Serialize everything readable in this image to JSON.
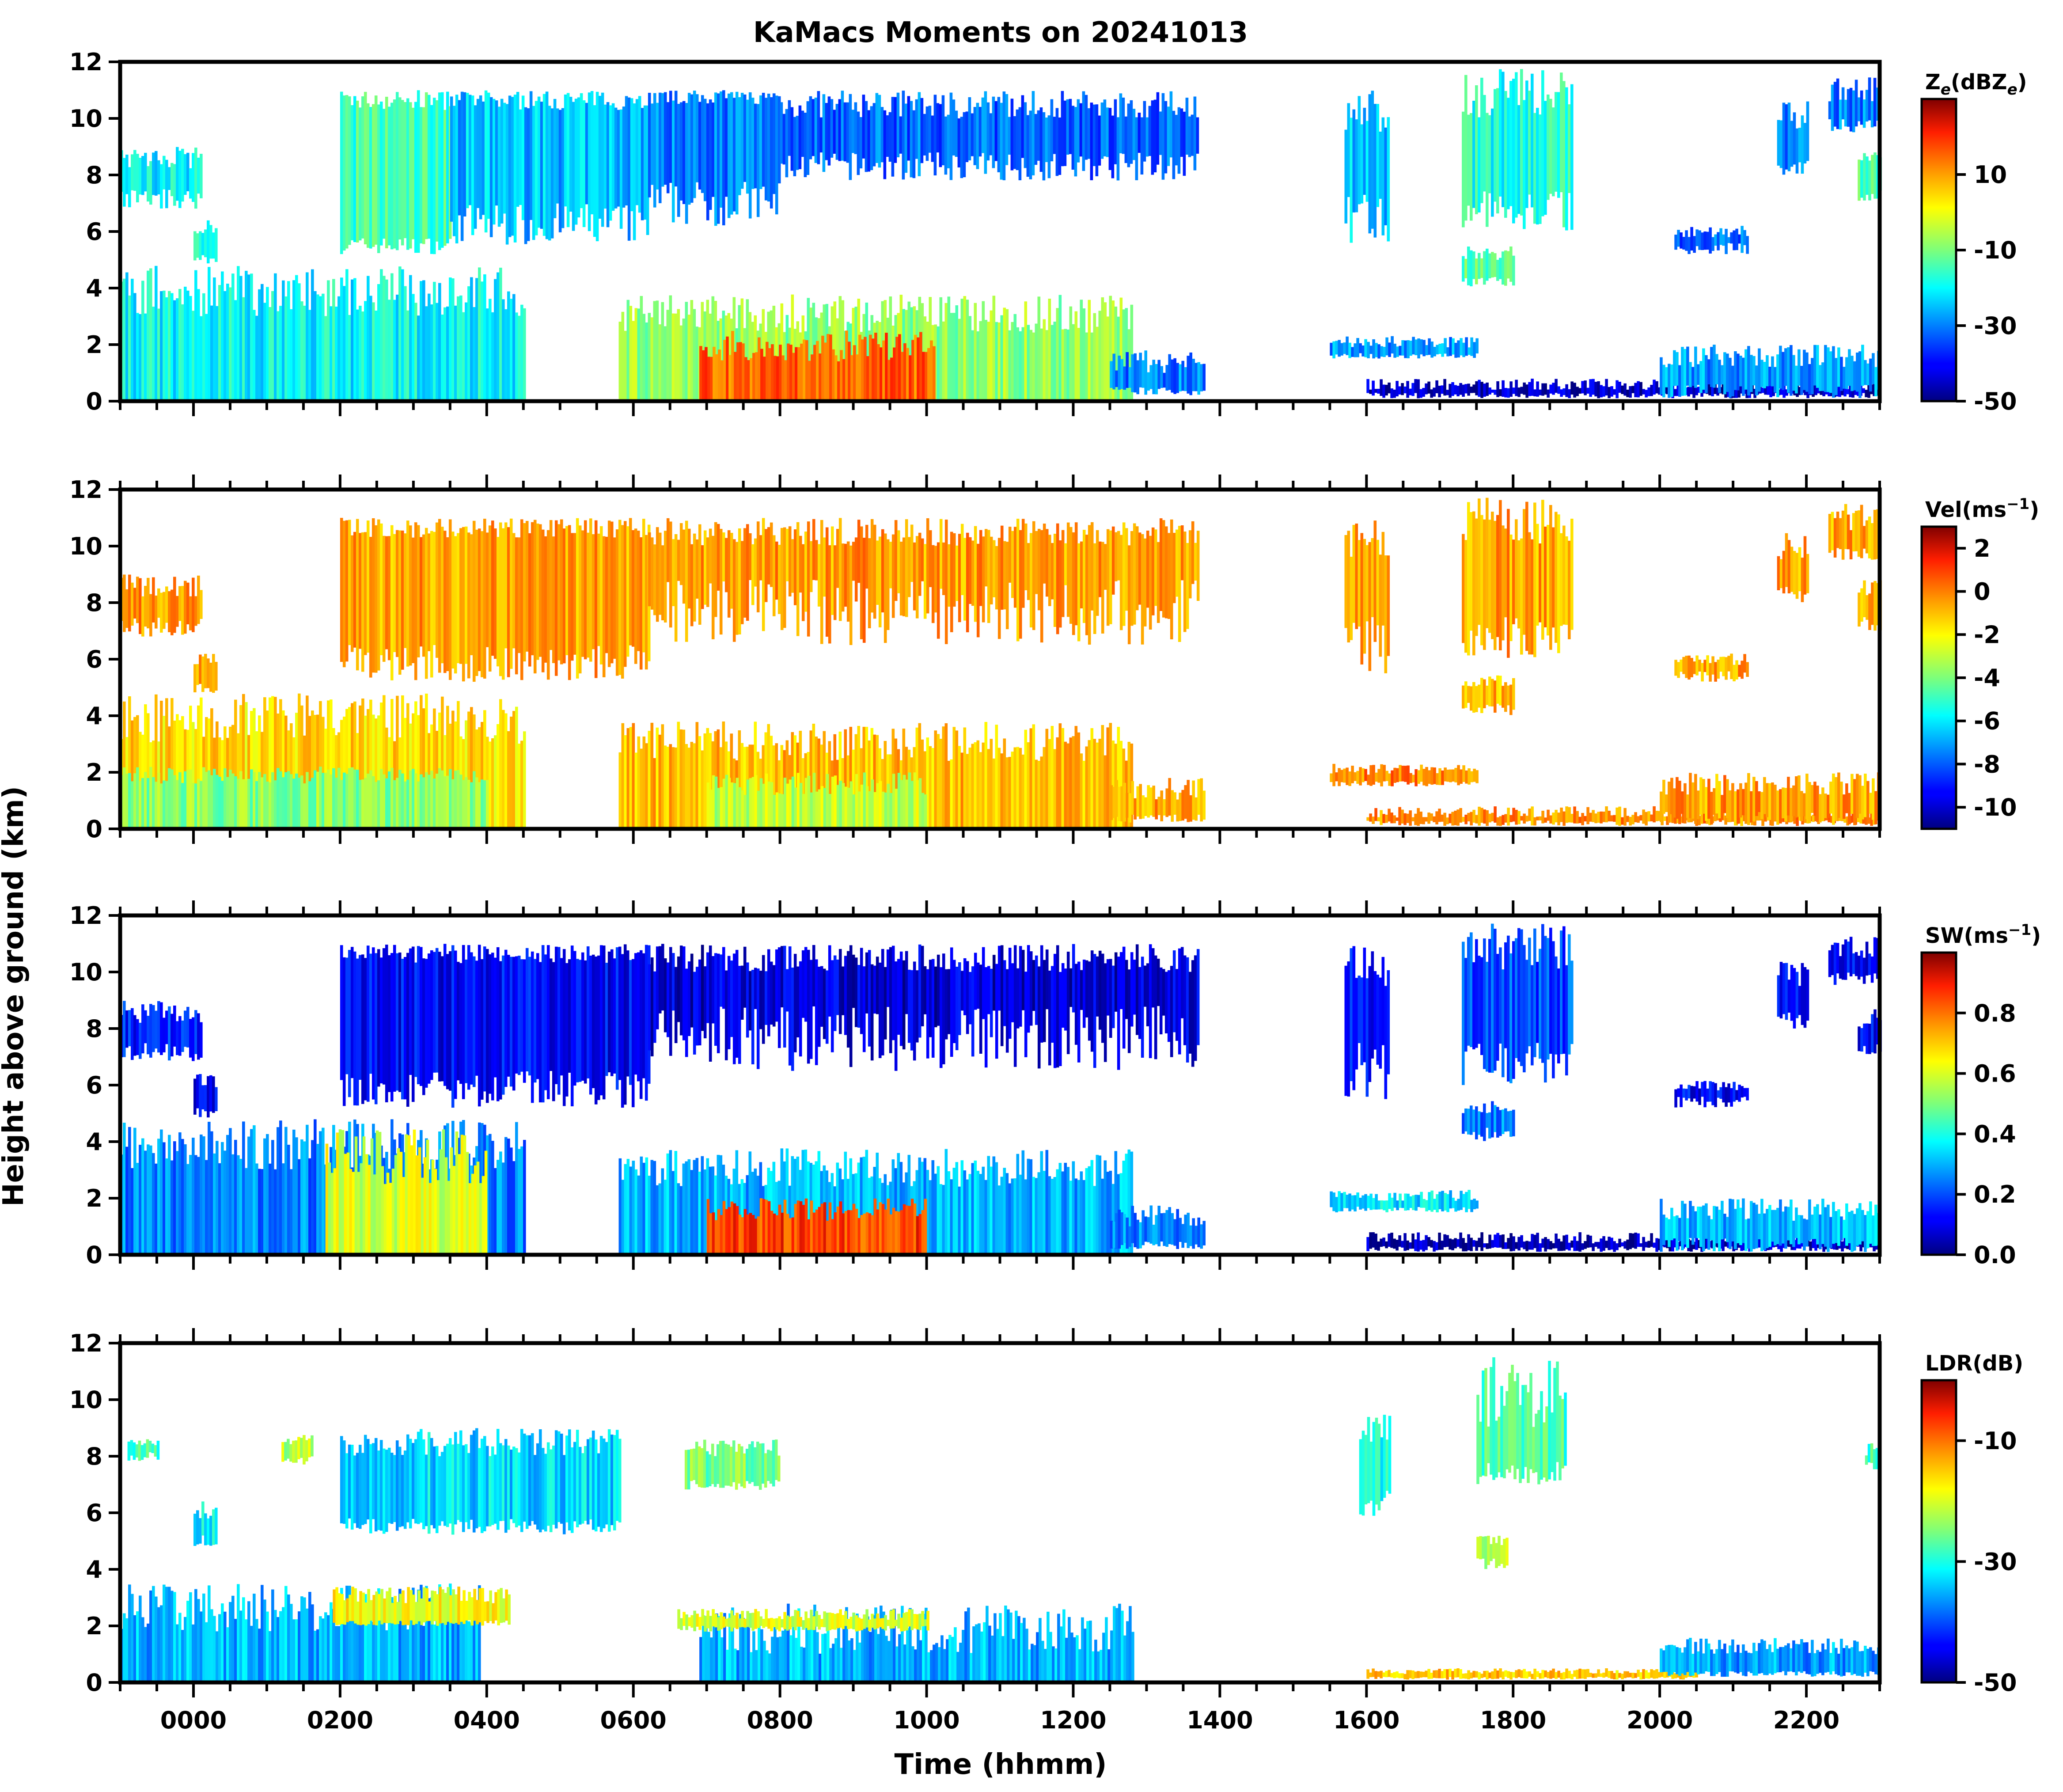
{
  "chart_data": {
    "type": "heatmap",
    "title": "KaMacs Moments on 20241013",
    "xlabel": "Time (hhmm)",
    "ylabel": "Height above ground (km)",
    "xlim_hours": [
      -1.0,
      23.0
    ],
    "x_ticks": [
      0,
      2,
      4,
      6,
      8,
      10,
      12,
      14,
      16,
      18,
      20,
      22
    ],
    "x_tick_labels": [
      "0000",
      "0200",
      "0400",
      "0600",
      "0800",
      "1000",
      "1200",
      "1400",
      "1600",
      "1800",
      "2000",
      "2200"
    ],
    "ylim_km": [
      0,
      12
    ],
    "y_ticks": [
      0,
      2,
      4,
      6,
      8,
      10,
      12
    ],
    "y_tick_labels": [
      "0",
      "2",
      "4",
      "6",
      "8",
      "10",
      "12"
    ],
    "colormap": "jet",
    "panels": [
      {
        "name": "reflectivity",
        "colorbar_label_main": "Z",
        "colorbar_label_sub": "e",
        "colorbar_label_rest": "(dBZ",
        "colorbar_label_sub2": "e",
        "colorbar_label_end": ")",
        "clim": [
          -50,
          30
        ],
        "colorbar_ticks": [
          -50,
          -30,
          -10,
          10
        ],
        "colorbar_tick_labels": [
          "-50",
          "-30",
          "-10",
          "10"
        ],
        "echoes": [
          {
            "t0": 2.0,
            "t1": 3.5,
            "b0": 5.2,
            "b1": 5.8,
            "tp0": 10.3,
            "tp1": 11.0,
            "v": -15
          },
          {
            "t0": 3.5,
            "t1": 6.2,
            "b0": 5.5,
            "b1": 7.0,
            "tp0": 10.3,
            "tp1": 11.0,
            "v": -25
          },
          {
            "t0": 6.2,
            "t1": 8.0,
            "b0": 6.2,
            "b1": 7.8,
            "tp0": 10.5,
            "tp1": 11.0,
            "v": -30
          },
          {
            "t0": 8.0,
            "t1": 13.7,
            "b0": 7.8,
            "b1": 8.8,
            "tp0": 10.0,
            "tp1": 11.0,
            "v": -32
          },
          {
            "t0": -1.0,
            "t1": 0.1,
            "b0": 6.8,
            "b1": 7.5,
            "tp0": 8.2,
            "tp1": 9.0,
            "v": -20
          },
          {
            "t0": -1.0,
            "t1": 4.5,
            "b0": 0.0,
            "b1": 0.0,
            "tp0": 3.0,
            "tp1": 4.8,
            "v": -20
          },
          {
            "t0": 5.8,
            "t1": 12.8,
            "b0": 0.0,
            "b1": 0.0,
            "tp0": 2.4,
            "tp1": 3.8,
            "v": -8
          },
          {
            "t0": 6.9,
            "t1": 10.1,
            "b0": 0.0,
            "b1": 0.0,
            "tp0": 1.4,
            "tp1": 2.5,
            "v": 15
          },
          {
            "t0": 12.5,
            "t1": 13.8,
            "b0": 0.2,
            "b1": 0.5,
            "tp0": 1.0,
            "tp1": 1.8,
            "v": -30
          },
          {
            "t0": 15.5,
            "t1": 17.5,
            "b0": 1.5,
            "b1": 1.7,
            "tp0": 1.9,
            "tp1": 2.3,
            "v": -28
          },
          {
            "t0": 16.0,
            "t1": 23.0,
            "b0": 0.1,
            "b1": 0.3,
            "tp0": 0.4,
            "tp1": 0.8,
            "v": -45
          },
          {
            "t0": 20.0,
            "t1": 23.0,
            "b0": 0.1,
            "b1": 0.6,
            "tp0": 1.2,
            "tp1": 2.0,
            "v": -28
          },
          {
            "t0": 15.7,
            "t1": 16.3,
            "b0": 5.5,
            "b1": 7.5,
            "tp0": 9.5,
            "tp1": 11.0,
            "v": -25
          },
          {
            "t0": 17.3,
            "t1": 18.8,
            "b0": 6.0,
            "b1": 7.5,
            "tp0": 10.0,
            "tp1": 11.8,
            "v": -18
          },
          {
            "t0": 17.3,
            "t1": 18.0,
            "b0": 4.0,
            "b1": 4.5,
            "tp0": 5.0,
            "tp1": 5.5,
            "v": -12
          },
          {
            "t0": 21.6,
            "t1": 22.0,
            "b0": 8.0,
            "b1": 8.6,
            "tp0": 9.5,
            "tp1": 10.6,
            "v": -30
          },
          {
            "t0": 22.3,
            "t1": 23.0,
            "b0": 9.5,
            "b1": 10.0,
            "tp0": 10.5,
            "tp1": 11.5,
            "v": -30
          },
          {
            "t0": 22.7,
            "t1": 23.0,
            "b0": 7.0,
            "b1": 7.5,
            "tp0": 8.0,
            "tp1": 8.8,
            "v": -15
          },
          {
            "t0": 20.2,
            "t1": 21.2,
            "b0": 5.2,
            "b1": 5.6,
            "tp0": 5.8,
            "tp1": 6.2,
            "v": -32
          },
          {
            "t0": 0.0,
            "t1": 0.3,
            "b0": 4.8,
            "b1": 5.2,
            "tp0": 5.8,
            "tp1": 6.4,
            "v": -20
          }
        ]
      },
      {
        "name": "velocity",
        "colorbar_label_main": "Vel(ms",
        "colorbar_label_sup": "−1",
        "colorbar_label_end": ")",
        "clim": [
          -11,
          3
        ],
        "colorbar_ticks": [
          -10,
          -8,
          -6,
          -4,
          -2,
          0,
          2
        ],
        "colorbar_tick_labels": [
          "-10",
          "-8",
          "-6",
          "-4",
          "-2",
          "0",
          "2"
        ],
        "echoes": [
          {
            "t0": 2.0,
            "t1": 6.2,
            "b0": 5.2,
            "b1": 6.5,
            "tp0": 10.3,
            "tp1": 11.0,
            "v": -0.6
          },
          {
            "t0": 6.2,
            "t1": 13.7,
            "b0": 6.5,
            "b1": 8.8,
            "tp0": 10.0,
            "tp1": 11.0,
            "v": -0.5
          },
          {
            "t0": -1.0,
            "t1": 0.1,
            "b0": 6.8,
            "b1": 7.5,
            "tp0": 8.2,
            "tp1": 9.0,
            "v": -0.4
          },
          {
            "t0": -1.0,
            "t1": 4.5,
            "b0": 0.0,
            "b1": 0.0,
            "tp0": 3.0,
            "tp1": 4.8,
            "v": -1.5
          },
          {
            "t0": -1.0,
            "t1": 4.0,
            "b0": 0.0,
            "b1": 0.0,
            "tp0": 1.6,
            "tp1": 2.2,
            "v": -3.8
          },
          {
            "t0": 5.8,
            "t1": 12.8,
            "b0": 0.0,
            "b1": 0.0,
            "tp0": 2.4,
            "tp1": 3.8,
            "v": -1.0
          },
          {
            "t0": 7.0,
            "t1": 10.0,
            "b0": 0.0,
            "b1": 0.0,
            "tp0": 1.2,
            "tp1": 2.0,
            "v": -3.0
          },
          {
            "t0": 12.5,
            "t1": 13.8,
            "b0": 0.2,
            "b1": 0.5,
            "tp0": 1.0,
            "tp1": 1.8,
            "v": -0.6
          },
          {
            "t0": 15.5,
            "t1": 17.5,
            "b0": 1.5,
            "b1": 1.7,
            "tp0": 1.9,
            "tp1": 2.3,
            "v": 0.0
          },
          {
            "t0": 16.0,
            "t1": 23.0,
            "b0": 0.1,
            "b1": 0.3,
            "tp0": 0.4,
            "tp1": 0.8,
            "v": -0.3
          },
          {
            "t0": 20.0,
            "t1": 23.0,
            "b0": 0.1,
            "b1": 0.6,
            "tp0": 1.2,
            "tp1": 2.0,
            "v": -0.5
          },
          {
            "t0": 15.7,
            "t1": 16.3,
            "b0": 5.5,
            "b1": 7.5,
            "tp0": 9.5,
            "tp1": 11.0,
            "v": -0.6
          },
          {
            "t0": 17.3,
            "t1": 18.8,
            "b0": 6.0,
            "b1": 7.5,
            "tp0": 10.0,
            "tp1": 11.8,
            "v": -0.6
          },
          {
            "t0": 17.3,
            "t1": 18.0,
            "b0": 4.0,
            "b1": 4.5,
            "tp0": 5.0,
            "tp1": 5.5,
            "v": -0.8
          },
          {
            "t0": 21.6,
            "t1": 22.0,
            "b0": 8.0,
            "b1": 8.6,
            "tp0": 9.5,
            "tp1": 10.6,
            "v": -0.6
          },
          {
            "t0": 22.3,
            "t1": 23.0,
            "b0": 9.5,
            "b1": 10.0,
            "tp0": 10.5,
            "tp1": 11.5,
            "v": -0.6
          },
          {
            "t0": 22.7,
            "t1": 23.0,
            "b0": 7.0,
            "b1": 7.5,
            "tp0": 8.0,
            "tp1": 8.8,
            "v": -0.6
          },
          {
            "t0": 20.2,
            "t1": 21.2,
            "b0": 5.2,
            "b1": 5.6,
            "tp0": 5.8,
            "tp1": 6.2,
            "v": -0.6
          },
          {
            "t0": 0.0,
            "t1": 0.3,
            "b0": 4.8,
            "b1": 5.2,
            "tp0": 5.8,
            "tp1": 6.4,
            "v": -0.6
          }
        ]
      },
      {
        "name": "spectrum_width",
        "colorbar_label_main": "SW(ms",
        "colorbar_label_sup": "−1",
        "colorbar_label_end": ")",
        "clim": [
          0.0,
          1.0
        ],
        "colorbar_ticks": [
          0.0,
          0.2,
          0.4,
          0.6,
          0.8
        ],
        "colorbar_tick_labels": [
          "0.0",
          "0.2",
          "0.4",
          "0.6",
          "0.8"
        ],
        "echoes": [
          {
            "t0": 2.0,
            "t1": 6.2,
            "b0": 5.2,
            "b1": 6.5,
            "tp0": 10.3,
            "tp1": 11.0,
            "v": 0.12
          },
          {
            "t0": 6.2,
            "t1": 13.7,
            "b0": 6.5,
            "b1": 8.8,
            "tp0": 10.0,
            "tp1": 11.0,
            "v": 0.08
          },
          {
            "t0": -1.0,
            "t1": 0.1,
            "b0": 6.8,
            "b1": 7.5,
            "tp0": 8.2,
            "tp1": 9.0,
            "v": 0.15
          },
          {
            "t0": -1.0,
            "t1": 4.5,
            "b0": 0.0,
            "b1": 0.0,
            "tp0": 3.0,
            "tp1": 4.8,
            "v": 0.25
          },
          {
            "t0": 1.8,
            "t1": 4.0,
            "b0": 0.0,
            "b1": 0.0,
            "tp0": 2.5,
            "tp1": 4.5,
            "v": 0.6
          },
          {
            "t0": 5.8,
            "t1": 12.8,
            "b0": 0.0,
            "b1": 0.0,
            "tp0": 2.4,
            "tp1": 3.8,
            "v": 0.3
          },
          {
            "t0": 7.0,
            "t1": 10.0,
            "b0": 0.0,
            "b1": 0.0,
            "tp0": 1.2,
            "tp1": 2.0,
            "v": 0.85
          },
          {
            "t0": 12.5,
            "t1": 13.8,
            "b0": 0.2,
            "b1": 0.5,
            "tp0": 1.0,
            "tp1": 1.8,
            "v": 0.25
          },
          {
            "t0": 15.5,
            "t1": 17.5,
            "b0": 1.5,
            "b1": 1.7,
            "tp0": 1.9,
            "tp1": 2.3,
            "v": 0.35
          },
          {
            "t0": 16.0,
            "t1": 23.0,
            "b0": 0.1,
            "b1": 0.3,
            "tp0": 0.4,
            "tp1": 0.8,
            "v": 0.05
          },
          {
            "t0": 20.0,
            "t1": 23.0,
            "b0": 0.1,
            "b1": 0.6,
            "tp0": 1.2,
            "tp1": 2.0,
            "v": 0.3
          },
          {
            "t0": 15.7,
            "t1": 16.3,
            "b0": 5.5,
            "b1": 7.5,
            "tp0": 9.5,
            "tp1": 11.0,
            "v": 0.12
          },
          {
            "t0": 17.3,
            "t1": 18.8,
            "b0": 6.0,
            "b1": 7.5,
            "tp0": 10.0,
            "tp1": 11.8,
            "v": 0.2
          },
          {
            "t0": 17.3,
            "t1": 18.0,
            "b0": 4.0,
            "b1": 4.5,
            "tp0": 5.0,
            "tp1": 5.5,
            "v": 0.25
          },
          {
            "t0": 21.6,
            "t1": 22.0,
            "b0": 8.0,
            "b1": 8.6,
            "tp0": 9.5,
            "tp1": 10.6,
            "v": 0.12
          },
          {
            "t0": 22.3,
            "t1": 23.0,
            "b0": 9.5,
            "b1": 10.0,
            "tp0": 10.5,
            "tp1": 11.5,
            "v": 0.12
          },
          {
            "t0": 22.7,
            "t1": 23.0,
            "b0": 7.0,
            "b1": 7.5,
            "tp0": 8.0,
            "tp1": 8.8,
            "v": 0.12
          },
          {
            "t0": 20.2,
            "t1": 21.2,
            "b0": 5.2,
            "b1": 5.6,
            "tp0": 5.8,
            "tp1": 6.2,
            "v": 0.12
          },
          {
            "t0": 0.0,
            "t1": 0.3,
            "b0": 4.8,
            "b1": 5.2,
            "tp0": 5.8,
            "tp1": 6.4,
            "v": 0.12
          }
        ]
      },
      {
        "name": "ldr",
        "colorbar_label_main": "LDR(dB)",
        "clim": [
          -50,
          0
        ],
        "colorbar_ticks": [
          -50,
          -30,
          -10
        ],
        "colorbar_tick_labels": [
          "-50",
          "-30",
          "-10"
        ],
        "echoes": [
          {
            "t0": 2.0,
            "t1": 5.8,
            "b0": 5.2,
            "b1": 5.8,
            "tp0": 8.0,
            "tp1": 9.0,
            "v": -33
          },
          {
            "t0": 6.7,
            "t1": 8.0,
            "b0": 6.8,
            "b1": 7.2,
            "tp0": 8.0,
            "tp1": 8.6,
            "v": -25
          },
          {
            "t0": 1.2,
            "t1": 1.6,
            "b0": 7.7,
            "b1": 8.0,
            "tp0": 8.4,
            "tp1": 8.8,
            "v": -22
          },
          {
            "t0": -1.0,
            "t1": 3.9,
            "b0": 0.0,
            "b1": 0.0,
            "tp0": 1.8,
            "tp1": 3.5,
            "v": -35
          },
          {
            "t0": 1.9,
            "t1": 4.3,
            "b0": 2.0,
            "b1": 2.2,
            "tp0": 2.8,
            "tp1": 3.4,
            "v": -18
          },
          {
            "t0": 6.9,
            "t1": 12.8,
            "b0": 0.0,
            "b1": 0.0,
            "tp0": 1.0,
            "tp1": 2.8,
            "v": -35
          },
          {
            "t0": 6.6,
            "t1": 10.0,
            "b0": 1.8,
            "b1": 2.0,
            "tp0": 2.2,
            "tp1": 2.6,
            "v": -20
          },
          {
            "t0": 16.0,
            "t1": 20.5,
            "b0": 0.1,
            "b1": 0.2,
            "tp0": 0.3,
            "tp1": 0.5,
            "v": -15
          },
          {
            "t0": 20.0,
            "t1": 23.0,
            "b0": 0.2,
            "b1": 0.4,
            "tp0": 1.0,
            "tp1": 1.6,
            "v": -36
          },
          {
            "t0": 15.9,
            "t1": 16.3,
            "b0": 5.8,
            "b1": 6.8,
            "tp0": 8.5,
            "tp1": 9.5,
            "v": -30
          },
          {
            "t0": 17.5,
            "t1": 18.7,
            "b0": 7.0,
            "b1": 7.8,
            "tp0": 9.0,
            "tp1": 11.5,
            "v": -28
          },
          {
            "t0": 17.5,
            "t1": 17.9,
            "b0": 4.0,
            "b1": 4.4,
            "tp0": 4.8,
            "tp1": 5.2,
            "v": -22
          },
          {
            "t0": 0.0,
            "t1": 0.3,
            "b0": 4.8,
            "b1": 5.2,
            "tp0": 5.8,
            "tp1": 6.4,
            "v": -32
          },
          {
            "t0": -0.9,
            "t1": -0.5,
            "b0": 7.8,
            "b1": 8.2,
            "tp0": 8.3,
            "tp1": 8.6,
            "v": -28
          },
          {
            "t0": 22.8,
            "t1": 23.0,
            "b0": 7.5,
            "b1": 7.8,
            "tp0": 8.0,
            "tp1": 8.6,
            "v": -28
          }
        ]
      }
    ]
  }
}
